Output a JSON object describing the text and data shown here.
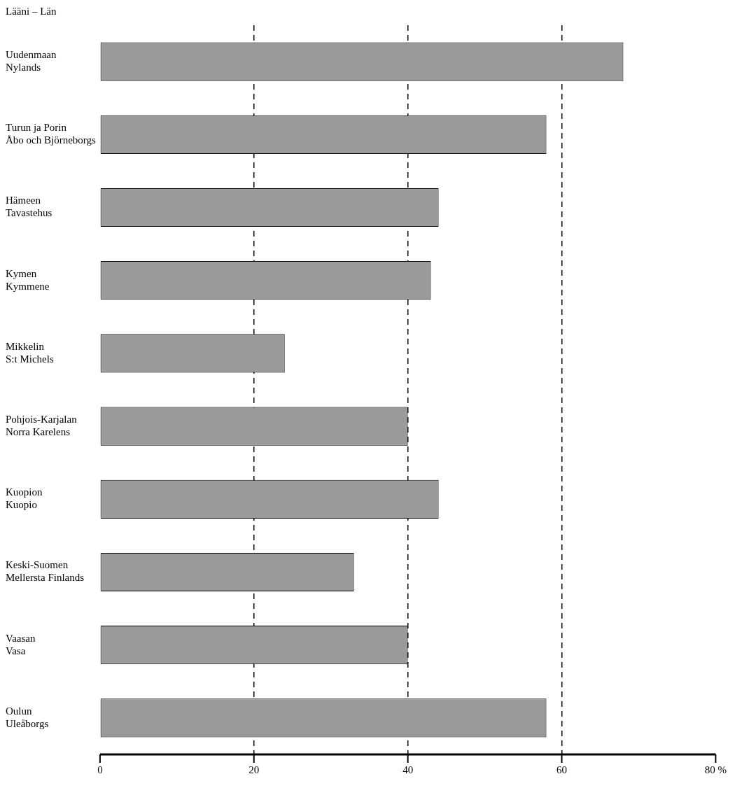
{
  "chart_data": {
    "type": "bar",
    "orientation": "horizontal",
    "ylabel": "Lääni – Län",
    "categories": [
      "Uudenmaan\nNylands",
      "Turun ja Porin\nÅbo och Björneborgs",
      "Hämeen\nTavastehus",
      "Kymen\nKymmene",
      "Mikkelin\nS:t Michels",
      "Pohjois-Karjalan\nNorra Karelens",
      "Kuopion\nKuopio",
      "Keski-Suomen\nMellersta Finlands",
      "Vaasan\nVasa",
      "Oulun\nUleåborgs"
    ],
    "values": [
      68,
      58,
      44,
      43,
      24,
      40,
      44,
      33,
      40,
      58
    ],
    "color": "#9a9a9a",
    "xlim": [
      0,
      80
    ],
    "xticks": [
      0,
      20,
      40,
      {
        "value": 60,
        "label": "60"
      },
      {
        "value": 80,
        "label": "80 %"
      }
    ],
    "grid": "x",
    "line_style": "dashed",
    "legend": false
  }
}
